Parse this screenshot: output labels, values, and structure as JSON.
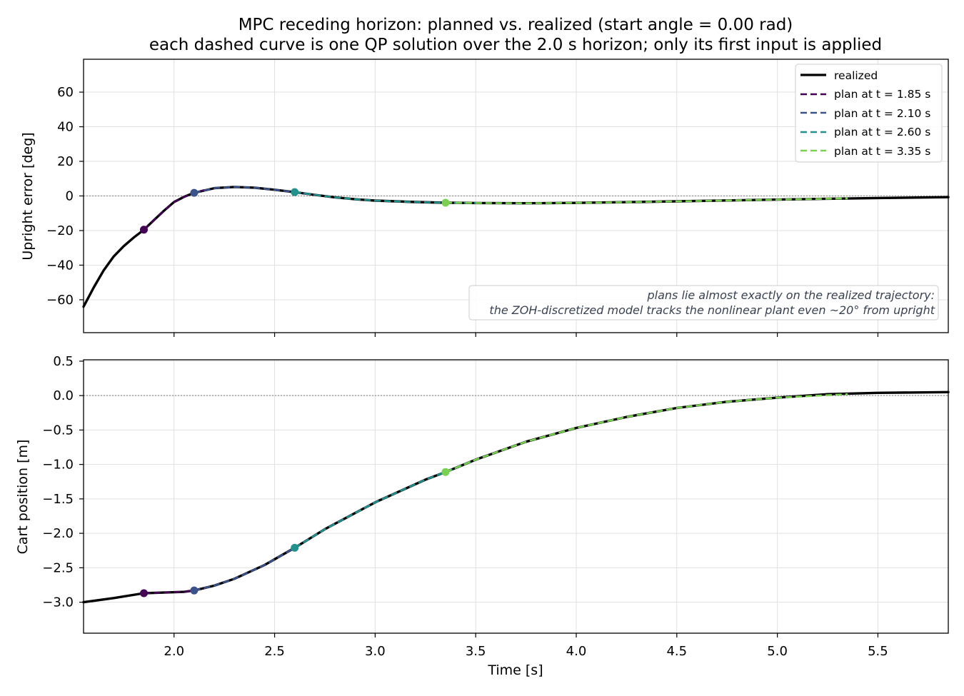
{
  "title_line1": "MPC receding horizon: planned vs. realized (start angle = 0.00 rad)",
  "title_line2": "each dashed curve is one QP solution over the 2.0 s horizon; only its first input is applied",
  "chart_data": [
    {
      "type": "line",
      "ylabel": "Upright error [deg]",
      "xlim": [
        1.55,
        5.85
      ],
      "ylim": [
        -79,
        79
      ],
      "xticks": [
        "2.0",
        "2.5",
        "3.0",
        "3.5",
        "4.0",
        "4.5",
        "5.0",
        "5.5"
      ],
      "yticks": [
        "−60",
        "−40",
        "−20",
        "0",
        "20",
        "40",
        "60"
      ],
      "grid": true,
      "reference_line": 0,
      "legend_position": "top-right",
      "legend": [
        "realized",
        "plan at t = 1.85 s",
        "plan at t = 2.10 s",
        "plan at t = 2.60 s",
        "plan at t = 3.35 s"
      ],
      "annotation_line1": "plans lie almost exactly on the realized trajectory:",
      "annotation_line2": "the ZOH-discretized model tracks the nonlinear plant even ~20° from upright",
      "series": [
        {
          "name": "realized",
          "x": [
            1.55,
            1.6,
            1.65,
            1.7,
            1.75,
            1.8,
            1.85,
            1.9,
            1.95,
            2.0,
            2.05,
            2.1,
            2.2,
            2.3,
            2.4,
            2.5,
            2.6,
            2.7,
            2.8,
            2.9,
            3.0,
            3.2,
            3.35,
            3.5,
            3.75,
            4.0,
            4.25,
            4.5,
            4.75,
            5.0,
            5.25,
            5.5,
            5.85
          ],
          "y": [
            -64,
            -53,
            -43,
            -35,
            -29,
            -24,
            -19.5,
            -14,
            -8.5,
            -3.5,
            -0.5,
            1.8,
            4.5,
            5.2,
            4.8,
            3.6,
            2.2,
            0.6,
            -0.8,
            -1.9,
            -2.7,
            -3.5,
            -3.9,
            -4.1,
            -4.2,
            -4.0,
            -3.6,
            -3.1,
            -2.6,
            -2.1,
            -1.6,
            -1.2,
            -0.7
          ]
        },
        {
          "name": "plan at t = 1.85 s",
          "color": "#440154",
          "x": [
            1.85,
            1.9,
            1.95,
            2.0,
            2.05,
            2.1,
            2.15
          ],
          "y": [
            -19.5,
            -14,
            -8.5,
            -3.5,
            -0.5,
            1.8,
            3.4
          ]
        },
        {
          "name": "plan at t = 2.10 s",
          "color": "#3b528b",
          "x": [
            2.1,
            2.2,
            2.3,
            2.4,
            2.5,
            2.6,
            2.7
          ],
          "y": [
            1.8,
            4.5,
            5.2,
            4.8,
            3.6,
            2.2,
            0.6
          ]
        },
        {
          "name": "plan at t = 2.60 s",
          "color": "#21918c",
          "x": [
            2.6,
            2.7,
            2.8,
            2.9,
            3.0,
            3.2,
            3.35,
            3.5
          ],
          "y": [
            2.2,
            0.6,
            -0.8,
            -1.9,
            -2.7,
            -3.5,
            -3.9,
            -4.1
          ]
        },
        {
          "name": "plan at t = 3.35 s",
          "color": "#7ad151",
          "x": [
            3.35,
            3.5,
            3.75,
            4.0,
            4.25,
            4.5,
            4.75,
            5.0,
            5.35
          ],
          "y": [
            -3.9,
            -4.1,
            -4.2,
            -4.0,
            -3.6,
            -3.1,
            -2.6,
            -2.1,
            -1.4
          ]
        }
      ],
      "markers": [
        {
          "x": 1.85,
          "y": -19.5,
          "color": "#440154"
        },
        {
          "x": 2.1,
          "y": 1.8,
          "color": "#3b528b"
        },
        {
          "x": 2.6,
          "y": 2.2,
          "color": "#21918c"
        },
        {
          "x": 3.35,
          "y": -3.9,
          "color": "#7ad151"
        }
      ]
    },
    {
      "type": "line",
      "xlabel": "Time [s]",
      "ylabel": "Cart position [m]",
      "xlim": [
        1.55,
        5.85
      ],
      "ylim": [
        -3.45,
        0.52
      ],
      "xticks": [
        "2.0",
        "2.5",
        "3.0",
        "3.5",
        "4.0",
        "4.5",
        "5.0",
        "5.5"
      ],
      "yticks": [
        "0.5",
        "0.0",
        "−0.5",
        "−1.0",
        "−1.5",
        "−2.0",
        "−2.5",
        "−3.0"
      ],
      "grid": true,
      "reference_line": 0,
      "series": [
        {
          "name": "realized",
          "x": [
            1.55,
            1.7,
            1.85,
            1.95,
            2.05,
            2.1,
            2.2,
            2.3,
            2.45,
            2.6,
            2.75,
            3.0,
            3.25,
            3.35,
            3.5,
            3.75,
            4.0,
            4.25,
            4.5,
            4.75,
            5.0,
            5.25,
            5.5,
            5.85
          ],
          "y": [
            -3.0,
            -2.94,
            -2.87,
            -2.86,
            -2.85,
            -2.83,
            -2.76,
            -2.66,
            -2.46,
            -2.21,
            -1.94,
            -1.55,
            -1.22,
            -1.11,
            -0.93,
            -0.67,
            -0.47,
            -0.31,
            -0.18,
            -0.09,
            -0.03,
            0.02,
            0.04,
            0.05
          ]
        },
        {
          "name": "plan at t = 1.85 s",
          "color": "#440154",
          "x": [
            1.85,
            1.95,
            2.05,
            2.1,
            2.15
          ],
          "y": [
            -2.87,
            -2.86,
            -2.85,
            -2.83,
            -2.8
          ]
        },
        {
          "name": "plan at t = 2.10 s",
          "color": "#3b528b",
          "x": [
            2.1,
            2.2,
            2.3,
            2.45,
            2.6,
            2.75,
            3.0,
            3.1
          ],
          "y": [
            -2.83,
            -2.76,
            -2.66,
            -2.46,
            -2.21,
            -1.94,
            -1.55,
            -1.42
          ]
        },
        {
          "name": "plan at t = 2.60 s",
          "color": "#21918c",
          "x": [
            2.6,
            2.75,
            3.0,
            3.25,
            3.35,
            3.5
          ],
          "y": [
            -2.21,
            -1.94,
            -1.55,
            -1.22,
            -1.11,
            -0.93
          ]
        },
        {
          "name": "plan at t = 3.35 s",
          "color": "#7ad151",
          "x": [
            3.35,
            3.5,
            3.75,
            4.0,
            4.25,
            4.5,
            4.75,
            5.0,
            5.35
          ],
          "y": [
            -1.11,
            -0.93,
            -0.67,
            -0.47,
            -0.31,
            -0.18,
            -0.09,
            -0.03,
            0.02
          ]
        }
      ],
      "markers": [
        {
          "x": 1.85,
          "y": -2.87,
          "color": "#440154"
        },
        {
          "x": 2.1,
          "y": -2.83,
          "color": "#3b528b"
        },
        {
          "x": 2.6,
          "y": -2.21,
          "color": "#21918c"
        },
        {
          "x": 3.35,
          "y": -1.11,
          "color": "#7ad151"
        }
      ]
    }
  ]
}
